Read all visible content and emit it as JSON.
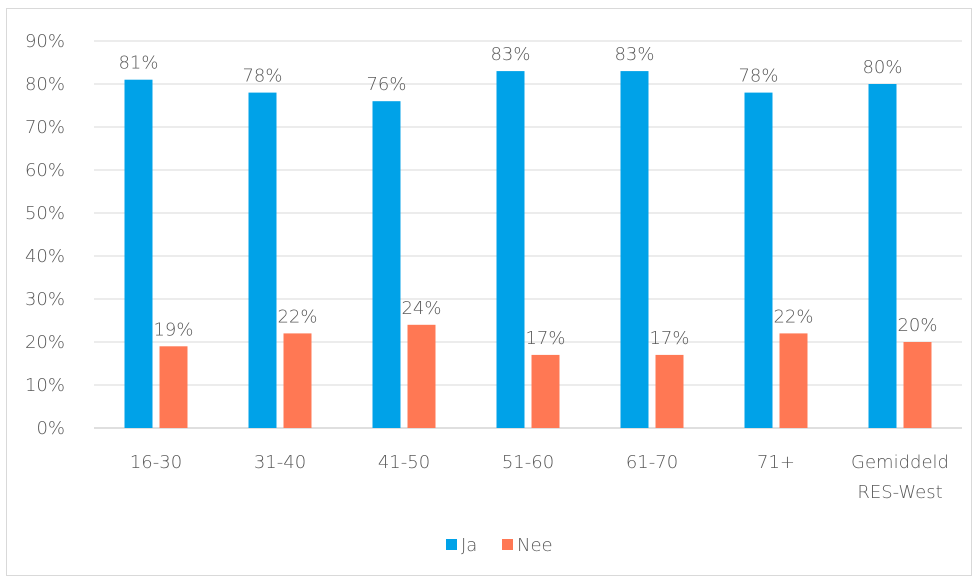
{
  "chart_data": {
    "type": "bar",
    "categories": [
      "16-30",
      "31-40",
      "41-50",
      "51-60",
      "61-70",
      "71+",
      [
        "Gemiddeld",
        "RES-West"
      ]
    ],
    "series": [
      {
        "name": "Ja",
        "color": "#00a2e8",
        "values": [
          81,
          78,
          76,
          83,
          83,
          78,
          80
        ],
        "labels": [
          "81%",
          "78%",
          "76%",
          "83%",
          "83%",
          "78%",
          "80%"
        ]
      },
      {
        "name": "Nee",
        "color": "#ff7854",
        "values": [
          19,
          22,
          24,
          17,
          17,
          22,
          20
        ],
        "labels": [
          "19%",
          "22%",
          "24%",
          "17%",
          "17%",
          "22%",
          "20%"
        ]
      }
    ],
    "ylim": [
      0,
      90
    ],
    "yticks": [
      0,
      10,
      20,
      30,
      40,
      50,
      60,
      70,
      80,
      90
    ],
    "ytick_labels": [
      "0%",
      "10%",
      "20%",
      "30%",
      "40%",
      "50%",
      "60%",
      "70%",
      "80%",
      "90%"
    ],
    "grid": true,
    "legend_position": "bottom"
  }
}
